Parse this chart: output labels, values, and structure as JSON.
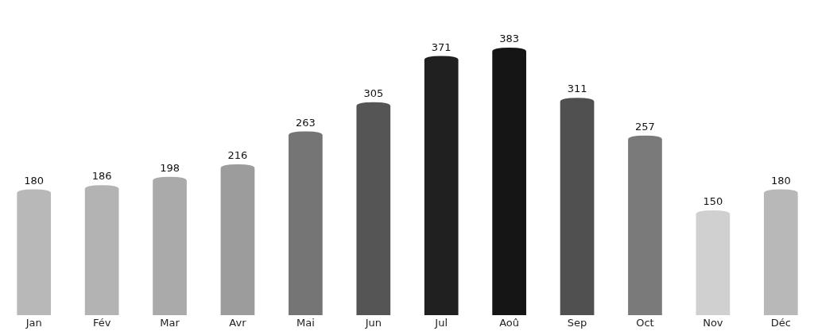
{
  "chart_data": {
    "type": "bar",
    "categories": [
      "Jan",
      "Fév",
      "Mar",
      "Avr",
      "Mai",
      "Jun",
      "Jul",
      "Aoû",
      "Sep",
      "Oct",
      "Nov",
      "Déc"
    ],
    "values": [
      180,
      186,
      198,
      216,
      263,
      305,
      371,
      383,
      311,
      257,
      150,
      180
    ],
    "colors": [
      "#b8b8b8",
      "#b3b3b3",
      "#aaaaaa",
      "#9c9c9c",
      "#757575",
      "#555555",
      "#202020",
      "#151515",
      "#505050",
      "#7a7a7a",
      "#d0d0d0",
      "#b8b8b8"
    ],
    "data_labels": true
  }
}
